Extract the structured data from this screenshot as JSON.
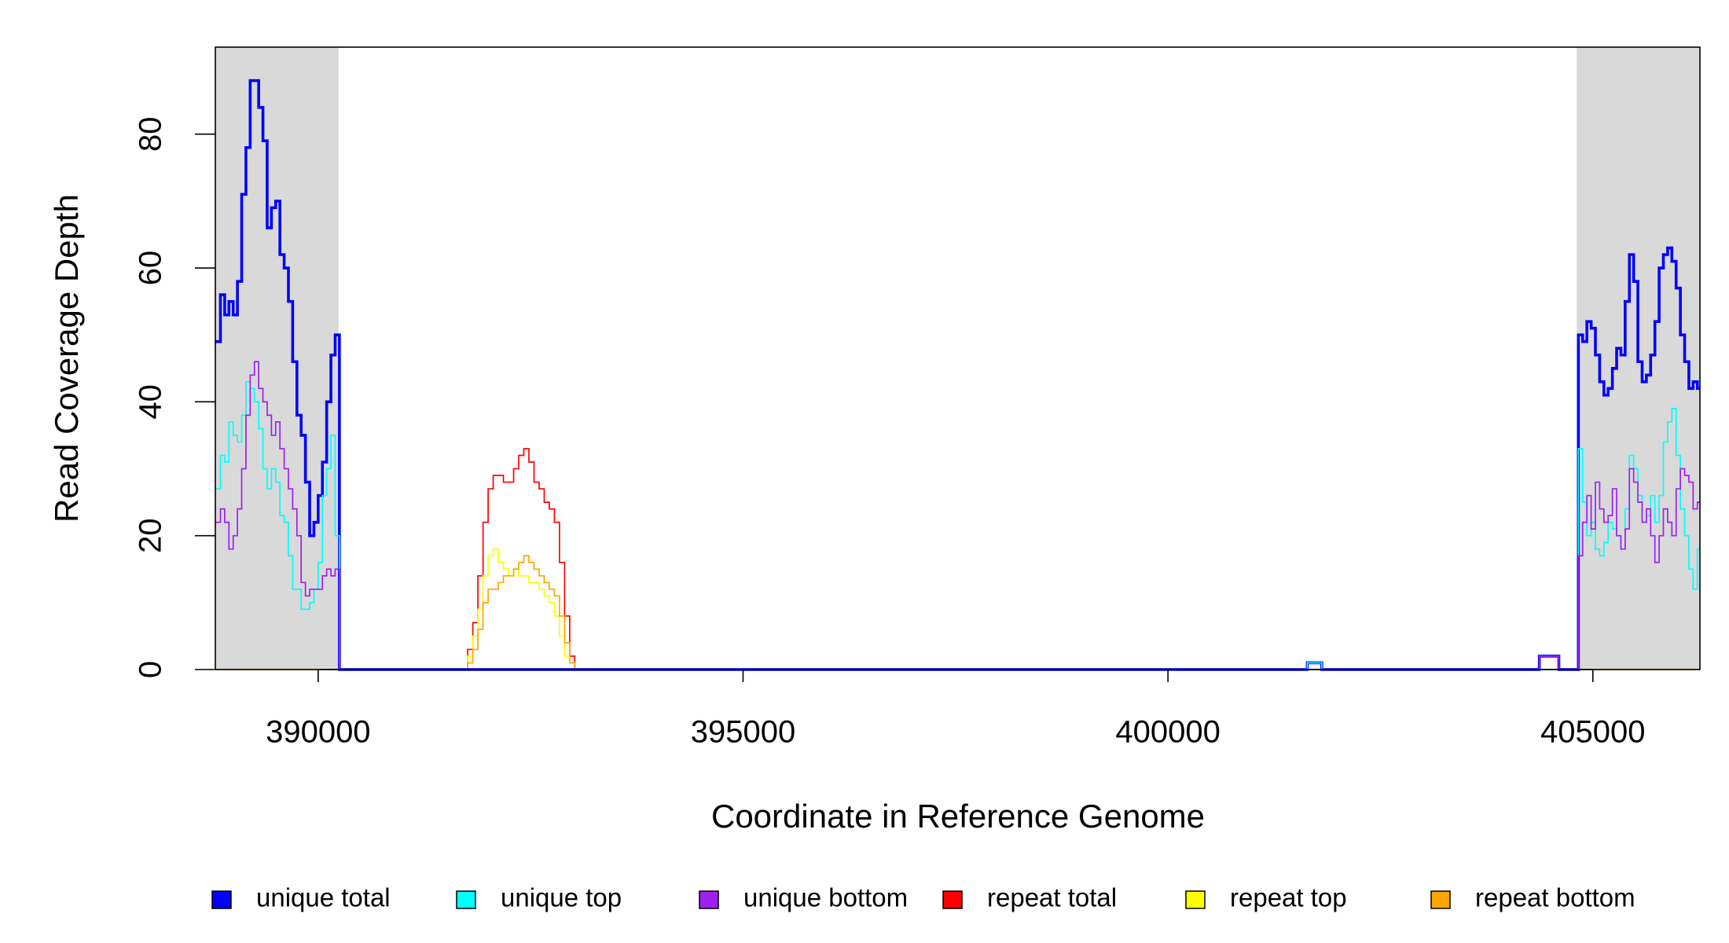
{
  "chart_data": {
    "type": "line",
    "xlabel": "Coordinate in Reference Genome",
    "ylabel": "Read Coverage Depth",
    "xlim": [
      388790,
      406260
    ],
    "ylim": [
      0,
      93
    ],
    "xticks": [
      390000,
      395000,
      400000,
      405000
    ],
    "yticks": [
      0,
      20,
      40,
      60,
      80
    ],
    "shaded_regions": [
      [
        388790,
        390240
      ],
      [
        404810,
        406260
      ]
    ],
    "shade_color": "#d9d9d9",
    "legend": "bottom",
    "series": [
      {
        "name": "repeat total",
        "color": "#ff0000",
        "x": [
          388790,
          391700,
          391760,
          391820,
          391880,
          391940,
          392000,
          392060,
          392120,
          392180,
          392240,
          392300,
          392360,
          392420,
          392480,
          392540,
          392600,
          392660,
          392720,
          392780,
          392840,
          392900,
          392960,
          393020
        ],
        "values": [
          0,
          0,
          3,
          7,
          14,
          22,
          27,
          29,
          29,
          28,
          28,
          30,
          32,
          33,
          31,
          28,
          27,
          25,
          24,
          22,
          16,
          8,
          2,
          0
        ]
      },
      {
        "name": "repeat top",
        "color": "#ffff00",
        "x": [
          388790,
          391700,
          391760,
          391820,
          391880,
          391940,
          392000,
          392060,
          392120,
          392180,
          392240,
          392300,
          392360,
          392420,
          392480,
          392540,
          392600,
          392660,
          392720,
          392780,
          392840,
          392900,
          392960,
          393020
        ],
        "values": [
          0,
          0,
          2,
          5,
          9,
          14,
          17,
          18,
          16,
          15,
          14,
          15,
          14,
          14,
          13,
          13,
          12,
          11,
          10,
          8,
          5,
          2,
          1,
          0
        ]
      },
      {
        "name": "repeat bottom",
        "color": "#ffa500",
        "x": [
          388790,
          391700,
          391760,
          391820,
          391880,
          391940,
          392000,
          392060,
          392120,
          392180,
          392240,
          392300,
          392360,
          392420,
          392480,
          392540,
          392600,
          392660,
          392720,
          392780,
          392840,
          392900,
          392960,
          393020
        ],
        "values": [
          0,
          0,
          1,
          3,
          6,
          10,
          12,
          12,
          13,
          14,
          14,
          15,
          16,
          17,
          16,
          15,
          14,
          13,
          12,
          11,
          8,
          4,
          1,
          0
        ]
      },
      {
        "name": "unique total",
        "color": "#0000ff",
        "x": [
          388790,
          388850,
          388900,
          388950,
          389000,
          389050,
          389100,
          389150,
          389200,
          389250,
          389300,
          389350,
          389400,
          389450,
          389500,
          389550,
          389600,
          389650,
          389700,
          389750,
          389800,
          389850,
          389900,
          389950,
          390000,
          390050,
          390100,
          390150,
          390200,
          390250,
          401640,
          401810,
          404370,
          404600,
          404830,
          404880,
          404930,
          404980,
          405030,
          405080,
          405130,
          405180,
          405230,
          405280,
          405330,
          405380,
          405430,
          405480,
          405530,
          405580,
          405630,
          405680,
          405730,
          405780,
          405830,
          405880,
          405930,
          405980,
          406030,
          406080,
          406130,
          406180,
          406230
        ],
        "values": [
          49,
          56,
          53,
          55,
          53,
          58,
          71,
          78,
          88,
          88,
          84,
          79,
          66,
          69,
          70,
          62,
          60,
          55,
          46,
          38,
          35,
          28,
          20,
          22,
          26,
          31,
          40,
          47,
          50,
          0,
          1,
          0,
          2,
          0,
          50,
          49,
          52,
          51,
          47,
          43,
          41,
          42,
          45,
          48,
          47,
          55,
          62,
          58,
          46,
          43,
          44,
          47,
          52,
          60,
          62,
          63,
          61,
          57,
          50,
          46,
          42,
          43,
          42
        ]
      },
      {
        "name": "unique top",
        "color": "#00ffff",
        "x": [
          388790,
          388850,
          388900,
          388950,
          389000,
          389050,
          389100,
          389150,
          389200,
          389250,
          389300,
          389350,
          389400,
          389450,
          389500,
          389550,
          389600,
          389650,
          389700,
          389750,
          389800,
          389850,
          389900,
          389950,
          390000,
          390050,
          390100,
          390150,
          390200,
          390250,
          401640,
          401810,
          404830,
          404880,
          404930,
          404980,
          405030,
          405080,
          405130,
          405180,
          405230,
          405280,
          405330,
          405380,
          405430,
          405480,
          405530,
          405580,
          405630,
          405680,
          405730,
          405780,
          405830,
          405880,
          405930,
          405980,
          406030,
          406080,
          406130,
          406180,
          406230
        ],
        "values": [
          27,
          32,
          31,
          37,
          35,
          34,
          38,
          43,
          42,
          40,
          36,
          30,
          27,
          30,
          28,
          23,
          22,
          17,
          12,
          12,
          9,
          9,
          10,
          12,
          16,
          26,
          30,
          35,
          20,
          0,
          1,
          0,
          33,
          25,
          20,
          22,
          18,
          17,
          19,
          22,
          21,
          20,
          18,
          24,
          32,
          30,
          26,
          22,
          23,
          26,
          22,
          26,
          34,
          37,
          39,
          32,
          24,
          20,
          15,
          12,
          18
        ]
      },
      {
        "name": "unique bottom",
        "color": "#a020f0",
        "x": [
          388790,
          388850,
          388900,
          388950,
          389000,
          389050,
          389100,
          389150,
          389200,
          389250,
          389300,
          389350,
          389400,
          389450,
          389500,
          389550,
          389600,
          389650,
          389700,
          389750,
          389800,
          389850,
          389900,
          389950,
          390000,
          390050,
          390100,
          390150,
          390200,
          390250,
          404370,
          404600,
          404830,
          404880,
          404930,
          404980,
          405030,
          405080,
          405130,
          405180,
          405230,
          405280,
          405330,
          405380,
          405430,
          405480,
          405530,
          405580,
          405630,
          405680,
          405730,
          405780,
          405830,
          405880,
          405930,
          405980,
          406030,
          406080,
          406130,
          406180,
          406230
        ],
        "values": [
          22,
          24,
          22,
          18,
          20,
          24,
          30,
          38,
          44,
          46,
          42,
          40,
          38,
          35,
          37,
          33,
          30,
          27,
          24,
          20,
          13,
          11,
          12,
          12,
          12,
          14,
          15,
          14,
          15,
          0,
          2,
          0,
          17,
          22,
          26,
          21,
          28,
          24,
          22,
          23,
          27,
          20,
          18,
          21,
          30,
          28,
          25,
          22,
          24,
          20,
          16,
          20,
          24,
          22,
          20,
          27,
          30,
          29,
          28,
          24,
          25
        ]
      }
    ],
    "legend_order": [
      3,
      4,
      5,
      0,
      1,
      2
    ]
  }
}
